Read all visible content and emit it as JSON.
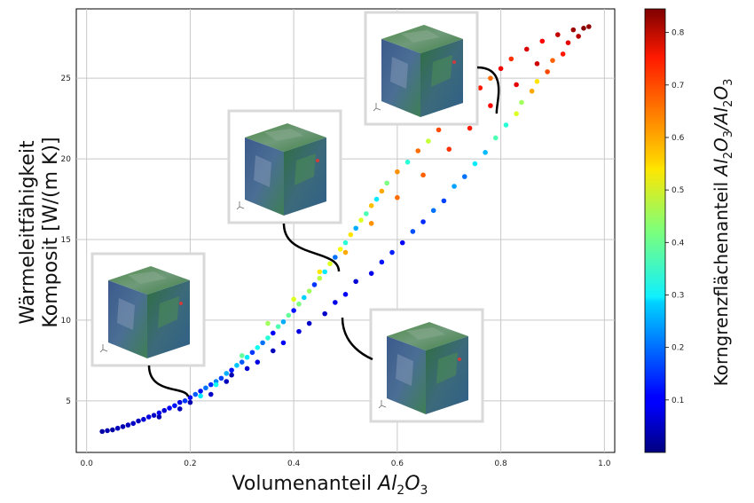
{
  "chart_data": {
    "type": "scatter",
    "title": "",
    "xlabel_main": "Volumenanteil ",
    "xlabel_chem": "Al2O3",
    "ylabel_line1": "Wärmeleitfähigkeit",
    "ylabel_line2": "Komposit [W/(m K)]",
    "colorbar_label_main": "Korngrenzflächenanteil ",
    "colorbar_label_chem": "Al2O3/Al2O3",
    "xlim": [
      -0.02,
      1.02
    ],
    "ylim": [
      1.8,
      29.3
    ],
    "xticks": [
      "0.0",
      "0.2",
      "0.4",
      "0.6",
      "0.8",
      "1.0"
    ],
    "yticks": [
      "5",
      "10",
      "15",
      "20",
      "25"
    ],
    "colorbar_range": [
      0.0,
      0.845
    ],
    "colorbar_ticks": [
      "0.1",
      "0.2",
      "0.3",
      "0.4",
      "0.5",
      "0.6",
      "0.7",
      "0.8"
    ],
    "colormap": "jet",
    "grid": true,
    "colors": {
      "cube_green": "#3f7f45",
      "cube_blue": "#3c5a8c",
      "connector": "#000000",
      "frame": "#d9d9d9"
    },
    "points": [
      {
        "x": 0.03,
        "y": 3.1,
        "c": 0.03
      },
      {
        "x": 0.04,
        "y": 3.15,
        "c": 0.04
      },
      {
        "x": 0.05,
        "y": 3.2,
        "c": 0.03
      },
      {
        "x": 0.06,
        "y": 3.3,
        "c": 0.05
      },
      {
        "x": 0.07,
        "y": 3.4,
        "c": 0.04
      },
      {
        "x": 0.08,
        "y": 3.5,
        "c": 0.05
      },
      {
        "x": 0.09,
        "y": 3.6,
        "c": 0.06
      },
      {
        "x": 0.1,
        "y": 3.75,
        "c": 0.05
      },
      {
        "x": 0.11,
        "y": 3.85,
        "c": 0.07
      },
      {
        "x": 0.12,
        "y": 4.0,
        "c": 0.08
      },
      {
        "x": 0.13,
        "y": 4.1,
        "c": 0.06
      },
      {
        "x": 0.14,
        "y": 4.25,
        "c": 0.09
      },
      {
        "x": 0.15,
        "y": 4.4,
        "c": 0.07
      },
      {
        "x": 0.16,
        "y": 4.55,
        "c": 0.1
      },
      {
        "x": 0.17,
        "y": 4.7,
        "c": 0.12
      },
      {
        "x": 0.18,
        "y": 4.9,
        "c": 0.08
      },
      {
        "x": 0.19,
        "y": 5.0,
        "c": 0.15
      },
      {
        "x": 0.2,
        "y": 5.2,
        "c": 0.1
      },
      {
        "x": 0.21,
        "y": 5.4,
        "c": 0.18
      },
      {
        "x": 0.22,
        "y": 5.6,
        "c": 0.12
      },
      {
        "x": 0.23,
        "y": 5.8,
        "c": 0.2
      },
      {
        "x": 0.24,
        "y": 6.0,
        "c": 0.14
      },
      {
        "x": 0.25,
        "y": 6.2,
        "c": 0.22
      },
      {
        "x": 0.26,
        "y": 6.4,
        "c": 0.16
      },
      {
        "x": 0.27,
        "y": 6.7,
        "c": 0.25
      },
      {
        "x": 0.28,
        "y": 6.9,
        "c": 0.12
      },
      {
        "x": 0.29,
        "y": 7.2,
        "c": 0.27
      },
      {
        "x": 0.3,
        "y": 7.4,
        "c": 0.18
      },
      {
        "x": 0.31,
        "y": 7.7,
        "c": 0.3
      },
      {
        "x": 0.32,
        "y": 8.0,
        "c": 0.15
      },
      {
        "x": 0.33,
        "y": 8.3,
        "c": 0.33
      },
      {
        "x": 0.34,
        "y": 8.6,
        "c": 0.2
      },
      {
        "x": 0.35,
        "y": 8.9,
        "c": 0.35
      },
      {
        "x": 0.36,
        "y": 9.2,
        "c": 0.1
      },
      {
        "x": 0.37,
        "y": 9.6,
        "c": 0.38
      },
      {
        "x": 0.38,
        "y": 9.9,
        "c": 0.25
      },
      {
        "x": 0.39,
        "y": 10.3,
        "c": 0.4
      },
      {
        "x": 0.4,
        "y": 10.6,
        "c": 0.12
      },
      {
        "x": 0.41,
        "y": 11.0,
        "c": 0.42
      },
      {
        "x": 0.42,
        "y": 11.4,
        "c": 0.28
      },
      {
        "x": 0.43,
        "y": 11.8,
        "c": 0.45
      },
      {
        "x": 0.44,
        "y": 12.2,
        "c": 0.15
      },
      {
        "x": 0.45,
        "y": 12.6,
        "c": 0.47
      },
      {
        "x": 0.46,
        "y": 13.0,
        "c": 0.3
      },
      {
        "x": 0.47,
        "y": 13.5,
        "c": 0.5
      },
      {
        "x": 0.48,
        "y": 13.9,
        "c": 0.2
      },
      {
        "x": 0.49,
        "y": 14.4,
        "c": 0.52
      },
      {
        "x": 0.5,
        "y": 14.8,
        "c": 0.35
      },
      {
        "x": 0.51,
        "y": 15.3,
        "c": 0.55
      },
      {
        "x": 0.52,
        "y": 15.7,
        "c": 0.25
      },
      {
        "x": 0.53,
        "y": 16.2,
        "c": 0.5
      },
      {
        "x": 0.54,
        "y": 16.6,
        "c": 0.38
      },
      {
        "x": 0.55,
        "y": 17.1,
        "c": 0.58
      },
      {
        "x": 0.56,
        "y": 17.5,
        "c": 0.3
      },
      {
        "x": 0.57,
        "y": 18.0,
        "c": 0.6
      },
      {
        "x": 0.58,
        "y": 18.5,
        "c": 0.42
      },
      {
        "x": 0.6,
        "y": 19.2,
        "c": 0.62
      },
      {
        "x": 0.62,
        "y": 19.8,
        "c": 0.35
      },
      {
        "x": 0.64,
        "y": 20.5,
        "c": 0.65
      },
      {
        "x": 0.66,
        "y": 21.1,
        "c": 0.48
      },
      {
        "x": 0.68,
        "y": 21.8,
        "c": 0.68
      },
      {
        "x": 0.7,
        "y": 22.5,
        "c": 0.55
      },
      {
        "x": 0.72,
        "y": 23.1,
        "c": 0.7
      },
      {
        "x": 0.74,
        "y": 23.8,
        "c": 0.6
      },
      {
        "x": 0.76,
        "y": 24.4,
        "c": 0.72
      },
      {
        "x": 0.78,
        "y": 25.0,
        "c": 0.65
      },
      {
        "x": 0.8,
        "y": 25.6,
        "c": 0.75
      },
      {
        "x": 0.82,
        "y": 26.2,
        "c": 0.7
      },
      {
        "x": 0.85,
        "y": 26.8,
        "c": 0.77
      },
      {
        "x": 0.88,
        "y": 27.3,
        "c": 0.74
      },
      {
        "x": 0.91,
        "y": 27.7,
        "c": 0.79
      },
      {
        "x": 0.94,
        "y": 28.0,
        "c": 0.82
      },
      {
        "x": 0.96,
        "y": 28.1,
        "c": 0.84
      },
      {
        "x": 0.97,
        "y": 28.2,
        "c": 0.83
      },
      {
        "x": 0.33,
        "y": 7.4,
        "c": 0.08
      },
      {
        "x": 0.38,
        "y": 8.6,
        "c": 0.1
      },
      {
        "x": 0.43,
        "y": 9.8,
        "c": 0.06
      },
      {
        "x": 0.48,
        "y": 11.1,
        "c": 0.09
      },
      {
        "x": 0.52,
        "y": 12.4,
        "c": 0.07
      },
      {
        "x": 0.57,
        "y": 13.6,
        "c": 0.12
      },
      {
        "x": 0.61,
        "y": 14.8,
        "c": 0.1
      },
      {
        "x": 0.65,
        "y": 16.1,
        "c": 0.14
      },
      {
        "x": 0.69,
        "y": 17.4,
        "c": 0.16
      },
      {
        "x": 0.73,
        "y": 18.9,
        "c": 0.2
      },
      {
        "x": 0.77,
        "y": 20.4,
        "c": 0.26
      },
      {
        "x": 0.81,
        "y": 22.1,
        "c": 0.35
      },
      {
        "x": 0.84,
        "y": 23.5,
        "c": 0.45
      },
      {
        "x": 0.87,
        "y": 24.8,
        "c": 0.55
      },
      {
        "x": 0.9,
        "y": 26.1,
        "c": 0.66
      },
      {
        "x": 0.93,
        "y": 27.2,
        "c": 0.76
      },
      {
        "x": 0.28,
        "y": 6.6,
        "c": 0.04
      },
      {
        "x": 0.31,
        "y": 7.0,
        "c": 0.07
      },
      {
        "x": 0.36,
        "y": 8.1,
        "c": 0.05
      },
      {
        "x": 0.41,
        "y": 9.3,
        "c": 0.08
      },
      {
        "x": 0.46,
        "y": 10.4,
        "c": 0.06
      },
      {
        "x": 0.5,
        "y": 11.6,
        "c": 0.1
      },
      {
        "x": 0.55,
        "y": 12.9,
        "c": 0.09
      },
      {
        "x": 0.59,
        "y": 14.2,
        "c": 0.13
      },
      {
        "x": 0.63,
        "y": 15.5,
        "c": 0.17
      },
      {
        "x": 0.67,
        "y": 16.8,
        "c": 0.2
      },
      {
        "x": 0.71,
        "y": 18.3,
        "c": 0.24
      },
      {
        "x": 0.75,
        "y": 19.7,
        "c": 0.3
      },
      {
        "x": 0.79,
        "y": 21.3,
        "c": 0.38
      },
      {
        "x": 0.83,
        "y": 22.8,
        "c": 0.5
      },
      {
        "x": 0.86,
        "y": 24.2,
        "c": 0.6
      },
      {
        "x": 0.89,
        "y": 25.4,
        "c": 0.68
      },
      {
        "x": 0.92,
        "y": 26.5,
        "c": 0.72
      },
      {
        "x": 0.95,
        "y": 27.6,
        "c": 0.8
      },
      {
        "x": 0.35,
        "y": 9.8,
        "c": 0.45
      },
      {
        "x": 0.4,
        "y": 11.3,
        "c": 0.5
      },
      {
        "x": 0.45,
        "y": 13.0,
        "c": 0.55
      },
      {
        "x": 0.5,
        "y": 14.2,
        "c": 0.6
      },
      {
        "x": 0.55,
        "y": 16.0,
        "c": 0.62
      },
      {
        "x": 0.6,
        "y": 17.6,
        "c": 0.65
      },
      {
        "x": 0.65,
        "y": 19.0,
        "c": 0.66
      },
      {
        "x": 0.7,
        "y": 20.6,
        "c": 0.7
      },
      {
        "x": 0.74,
        "y": 21.9,
        "c": 0.72
      },
      {
        "x": 0.78,
        "y": 23.3,
        "c": 0.74
      },
      {
        "x": 0.83,
        "y": 24.6,
        "c": 0.76
      },
      {
        "x": 0.87,
        "y": 25.9,
        "c": 0.78
      },
      {
        "x": 0.22,
        "y": 5.3,
        "c": 0.3
      },
      {
        "x": 0.25,
        "y": 6.0,
        "c": 0.33
      },
      {
        "x": 0.3,
        "y": 7.8,
        "c": 0.4
      },
      {
        "x": 0.27,
        "y": 6.2,
        "c": 0.05
      },
      {
        "x": 0.24,
        "y": 5.4,
        "c": 0.06
      },
      {
        "x": 0.2,
        "y": 4.9,
        "c": 0.04
      },
      {
        "x": 0.18,
        "y": 4.5,
        "c": 0.05
      },
      {
        "x": 0.14,
        "y": 4.0,
        "c": 0.04
      }
    ]
  }
}
